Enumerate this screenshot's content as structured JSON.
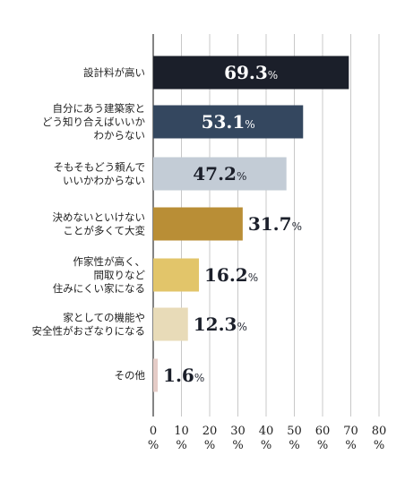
{
  "chart_data": {
    "type": "bar",
    "orientation": "horizontal",
    "categories": [
      [
        "設計料が高い"
      ],
      [
        "自分にあう建築家と",
        "どう知り合えばいいか",
        "わからない"
      ],
      [
        "そもそもどう頼んで",
        "いいかわからない"
      ],
      [
        "決めないといけない",
        "ことが多くて大変"
      ],
      [
        "作家性が高く、",
        "間取りなど",
        "住みにくい家になる"
      ],
      [
        "家としての機能や",
        "安全性がおざなりになる"
      ],
      [
        "その他"
      ]
    ],
    "values": [
      69.3,
      53.1,
      47.2,
      31.7,
      16.2,
      12.3,
      1.6
    ],
    "value_labels": [
      "69.3",
      "53.1",
      "47.2",
      "31.7",
      "16.2",
      "12.3",
      "1.6"
    ],
    "value_unit": "%",
    "colors": [
      "#1b1f2a",
      "#34475f",
      "#c3ccd6",
      "#b98e36",
      "#e2c56a",
      "#e8dbb8",
      "#e5ccc7"
    ],
    "value_label_inside": [
      true,
      true,
      true,
      false,
      false,
      false,
      false
    ],
    "value_label_colors": [
      "#ffffff",
      "#ffffff",
      "#1b1f2a",
      "#1b1f2a",
      "#1b1f2a",
      "#1b1f2a",
      "#1b1f2a"
    ],
    "xlim": [
      0,
      80
    ],
    "xticks": [
      0,
      10,
      20,
      30,
      40,
      50,
      60,
      70,
      80
    ],
    "xtick_unit": "%",
    "grid": true
  }
}
